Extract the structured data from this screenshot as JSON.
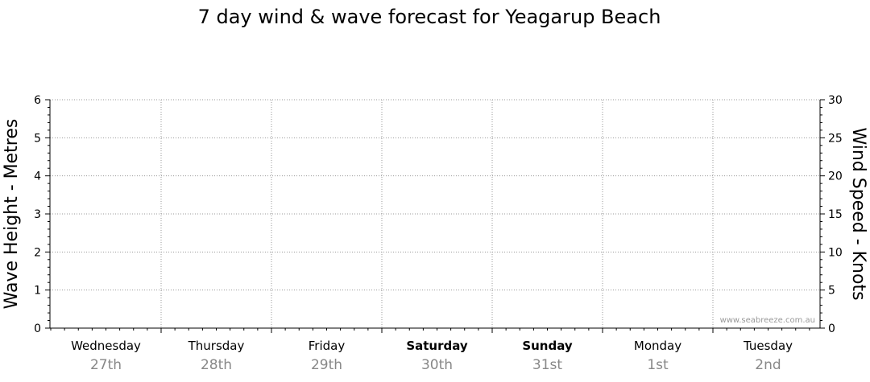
{
  "chart_data": {
    "type": "line",
    "title": "7 day wind & wave forecast for Yeagarup Beach",
    "ylabel_left": "Wave Height - Metres",
    "ylabel_right": "Wind Speed - Knots",
    "ylim_left": [
      0,
      6
    ],
    "ylim_right": [
      0,
      30
    ],
    "yticks_left": [
      "0",
      "1",
      "2",
      "3",
      "4",
      "5",
      "6"
    ],
    "yticks_right": [
      "0",
      "5",
      "10",
      "15",
      "20",
      "25",
      "30"
    ],
    "days": [
      {
        "day": "Wednesday",
        "date": "27th",
        "weekend": false
      },
      {
        "day": "Thursday",
        "date": "28th",
        "weekend": false
      },
      {
        "day": "Friday",
        "date": "29th",
        "weekend": false
      },
      {
        "day": "Saturday",
        "date": "30th",
        "weekend": true
      },
      {
        "day": "Sunday",
        "date": "31st",
        "weekend": true
      },
      {
        "day": "Monday",
        "date": "1st",
        "weekend": false
      },
      {
        "day": "Tuesday",
        "date": "2nd",
        "weekend": false
      }
    ],
    "grid": true,
    "series": []
  },
  "watermark": "www.seabreeze.com.au"
}
